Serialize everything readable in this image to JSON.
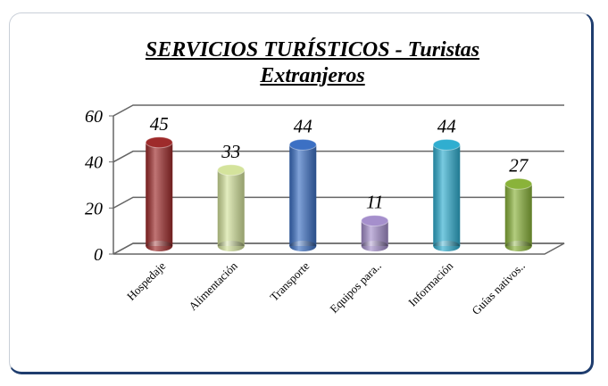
{
  "chart_data": {
    "type": "bar3d",
    "title": "SERVICIOS TURÍSTICOS - Turistas Extranjeros",
    "categories": [
      "Hospedaje",
      "Alimentación",
      "Transporte",
      "Equipos para..",
      "Información",
      "Guías nativos.."
    ],
    "values": [
      45,
      33,
      44,
      11,
      44,
      27
    ],
    "colors": [
      "#9e2b2b",
      "#d4e39c",
      "#3c70c4",
      "#a58fcc",
      "#30aed0",
      "#8ab33a"
    ],
    "ylim": [
      0,
      60
    ],
    "yticks": [
      0,
      20,
      40,
      60
    ],
    "grid": true
  }
}
